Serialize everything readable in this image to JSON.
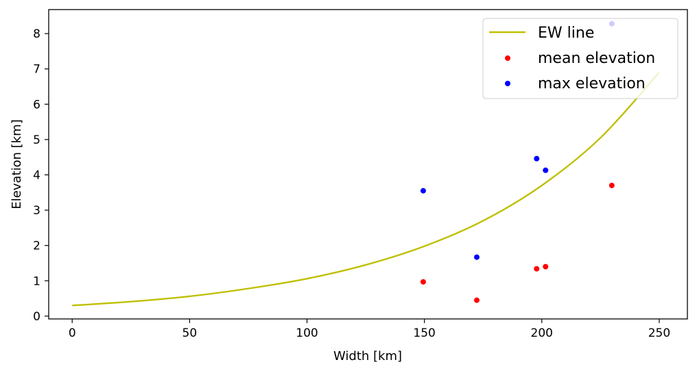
{
  "chart_data": {
    "type": "scatter",
    "title": "",
    "xlabel": "Width [km]",
    "ylabel": "Elevation [km]",
    "xlim": [
      -10,
      262
    ],
    "ylim": [
      -0.08,
      8.68
    ],
    "xticks": [
      0,
      50,
      100,
      150,
      200,
      250
    ],
    "yticks": [
      0,
      1,
      2,
      3,
      4,
      5,
      6,
      7,
      8
    ],
    "grid": false,
    "legend_placement": "top-right",
    "line_series": {
      "name": "EW line",
      "color": "#bfbf00",
      "x": [
        0,
        25,
        50,
        75,
        100,
        125,
        150,
        175,
        200,
        225,
        250
      ],
      "y": [
        0.3,
        0.41,
        0.56,
        0.78,
        1.06,
        1.45,
        1.98,
        2.7,
        3.7,
        5.05,
        6.9
      ]
    },
    "series": [
      {
        "name": "mean elevation",
        "color": "#ff0000",
        "x": [
          149.5,
          172.3,
          197.8,
          201.6,
          229.8
        ],
        "y": [
          0.97,
          0.45,
          1.34,
          1.4,
          3.7
        ]
      },
      {
        "name": "max elevation",
        "color": "#0000ff",
        "x": [
          149.5,
          172.3,
          197.8,
          201.6,
          229.8
        ],
        "y": [
          3.55,
          1.67,
          4.46,
          4.13,
          8.28
        ]
      }
    ]
  }
}
